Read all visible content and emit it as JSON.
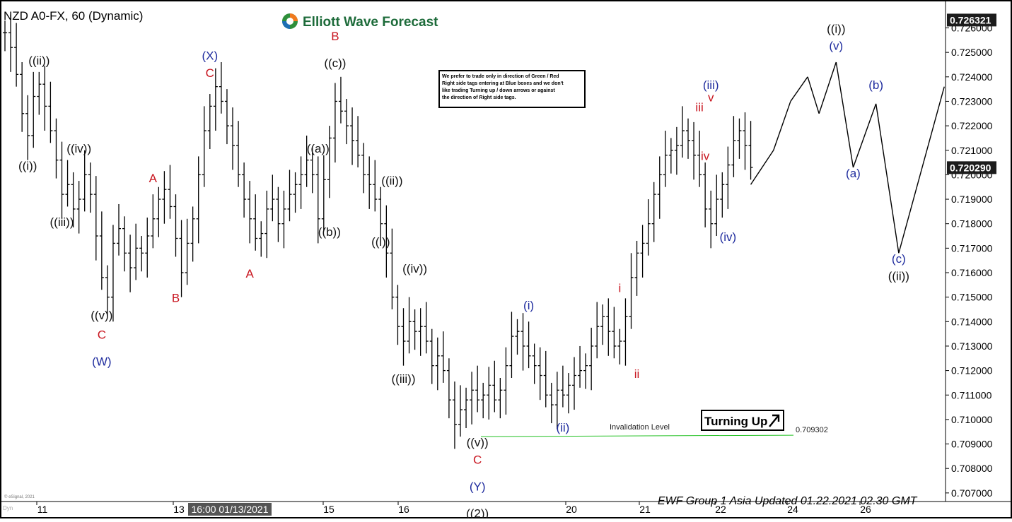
{
  "header": {
    "symbol_title": "NZD A0-FX, 60 (Dynamic)",
    "brand": "Elliott Wave Forecast",
    "footer": "EWF Group 1 Asia Updated 01.22.2021 02.30 GMT",
    "copyright": "© eSignal, 2021",
    "corner": "Dyn"
  },
  "note_box": {
    "lines": [
      "We prefer to trade only in direction of Green / Red",
      "Right side tags entering at Blue boxes and we don't",
      "like trading Turning up / down arrows or against",
      "the direction of Right side tags."
    ]
  },
  "turning_box": {
    "label": "Turning Up"
  },
  "invalidation": {
    "label": "Invalidation Level",
    "value": "0.709302",
    "price": 0.709302
  },
  "price_badges": [
    {
      "text": "0.726321",
      "price": 0.726321
    },
    {
      "text": "0.720290",
      "price": 0.72029
    }
  ],
  "colors": {
    "black": "#111111",
    "blue": "#1f2c9e",
    "red": "#c8141e",
    "green": "#21c021",
    "badge": "#1c1c1c",
    "grey": "#555555"
  },
  "chart_data": {
    "type": "line",
    "yaxis": {
      "ylim": [
        0.7063,
        0.7275
      ],
      "ticks": [
        "0.726000",
        "0.725000",
        "0.724000",
        "0.723000",
        "0.722000",
        "0.721000",
        "0.720000",
        "0.719000",
        "0.718000",
        "0.717000",
        "0.716000",
        "0.715000",
        "0.714000",
        "0.713000",
        "0.712000",
        "0.711000",
        "0.710000",
        "0.709000",
        "0.708000",
        "0.707000"
      ]
    },
    "xaxis": {
      "ticks": [
        "11",
        "13",
        "15",
        "16",
        "20",
        "21",
        "22",
        "24",
        "26"
      ],
      "cursor_label": "16:00 01/13/2021"
    },
    "price_series": [
      [
        0,
        0.7258
      ],
      [
        1,
        0.7252
      ],
      [
        2,
        0.7241
      ],
      [
        3,
        0.7225
      ],
      [
        4,
        0.7216
      ],
      [
        5,
        0.7232
      ],
      [
        6,
        0.7237
      ],
      [
        7,
        0.7228
      ],
      [
        8,
        0.7218
      ],
      [
        9,
        0.7206
      ],
      [
        10,
        0.7192
      ],
      [
        11,
        0.7196
      ],
      [
        12,
        0.7186
      ],
      [
        13,
        0.719
      ],
      [
        14,
        0.72
      ],
      [
        15,
        0.7192
      ],
      [
        16,
        0.7175
      ],
      [
        17,
        0.7158
      ],
      [
        18,
        0.715
      ],
      [
        19,
        0.7172
      ],
      [
        20,
        0.7178
      ],
      [
        21,
        0.7168
      ],
      [
        22,
        0.7162
      ],
      [
        23,
        0.717
      ],
      [
        24,
        0.7168
      ],
      [
        25,
        0.7175
      ],
      [
        26,
        0.7182
      ],
      [
        27,
        0.719
      ],
      [
        28,
        0.7194
      ],
      [
        29,
        0.7187
      ],
      [
        30,
        0.7174
      ],
      [
        31,
        0.716
      ],
      [
        32,
        0.7172
      ],
      [
        33,
        0.7182
      ],
      [
        34,
        0.72
      ],
      [
        35,
        0.7218
      ],
      [
        36,
        0.7228
      ],
      [
        37,
        0.7236
      ],
      [
        38,
        0.723
      ],
      [
        39,
        0.722
      ],
      [
        40,
        0.7212
      ],
      [
        41,
        0.72
      ],
      [
        42,
        0.719
      ],
      [
        43,
        0.7182
      ],
      [
        44,
        0.7174
      ],
      [
        45,
        0.7176
      ],
      [
        46,
        0.7186
      ],
      [
        47,
        0.719
      ],
      [
        48,
        0.718
      ],
      [
        49,
        0.7186
      ],
      [
        50,
        0.7192
      ],
      [
        51,
        0.7196
      ],
      [
        52,
        0.72
      ],
      [
        53,
        0.7206
      ],
      [
        54,
        0.72
      ],
      [
        55,
        0.7182
      ],
      [
        56,
        0.7198
      ],
      [
        57,
        0.7215
      ],
      [
        58,
        0.723
      ],
      [
        59,
        0.7226
      ],
      [
        60,
        0.722
      ],
      [
        61,
        0.7214
      ],
      [
        62,
        0.7208
      ],
      [
        63,
        0.72
      ],
      [
        64,
        0.7196
      ],
      [
        65,
        0.719
      ],
      [
        66,
        0.718
      ],
      [
        67,
        0.7168
      ],
      [
        68,
        0.715
      ],
      [
        69,
        0.7138
      ],
      [
        70,
        0.7132
      ],
      [
        71,
        0.714
      ],
      [
        72,
        0.7136
      ],
      [
        73,
        0.7138
      ],
      [
        74,
        0.7132
      ],
      [
        75,
        0.7122
      ],
      [
        76,
        0.7126
      ],
      [
        77,
        0.712
      ],
      [
        78,
        0.7108
      ],
      [
        79,
        0.7098
      ],
      [
        80,
        0.7104
      ],
      [
        81,
        0.7108
      ],
      [
        82,
        0.7112
      ],
      [
        83,
        0.7108
      ],
      [
        84,
        0.711
      ],
      [
        85,
        0.7114
      ],
      [
        86,
        0.7108
      ],
      [
        87,
        0.7112
      ],
      [
        88,
        0.7122
      ],
      [
        89,
        0.7134
      ],
      [
        90,
        0.7136
      ],
      [
        91,
        0.713
      ],
      [
        92,
        0.7126
      ],
      [
        93,
        0.7122
      ],
      [
        94,
        0.7118
      ],
      [
        95,
        0.711
      ],
      [
        96,
        0.7106
      ],
      [
        97,
        0.7112
      ],
      [
        98,
        0.711
      ],
      [
        99,
        0.7114
      ],
      [
        100,
        0.7118
      ],
      [
        101,
        0.712
      ],
      [
        102,
        0.7122
      ],
      [
        103,
        0.713
      ],
      [
        104,
        0.7138
      ],
      [
        105,
        0.7142
      ],
      [
        106,
        0.7136
      ],
      [
        107,
        0.713
      ],
      [
        108,
        0.7132
      ],
      [
        109,
        0.7142
      ],
      [
        110,
        0.7158
      ],
      [
        111,
        0.7168
      ],
      [
        112,
        0.7172
      ],
      [
        113,
        0.718
      ],
      [
        114,
        0.7192
      ],
      [
        115,
        0.72
      ],
      [
        116,
        0.7208
      ],
      [
        117,
        0.721
      ],
      [
        118,
        0.7212
      ],
      [
        119,
        0.7218
      ],
      [
        120,
        0.7214
      ],
      [
        121,
        0.7208
      ],
      [
        122,
        0.72
      ],
      [
        123,
        0.7186
      ],
      [
        124,
        0.718
      ],
      [
        125,
        0.719
      ],
      [
        126,
        0.7196
      ],
      [
        127,
        0.7204
      ],
      [
        128,
        0.7214
      ],
      [
        129,
        0.7218
      ],
      [
        130,
        0.7212
      ],
      [
        131,
        0.7203
      ]
    ],
    "projection": [
      [
        131,
        0.7196
      ],
      [
        135,
        0.721
      ],
      [
        138,
        0.723
      ],
      [
        141,
        0.724
      ],
      [
        143,
        0.7225
      ],
      [
        146,
        0.7246
      ],
      [
        149,
        0.7203
      ],
      [
        153,
        0.7229
      ],
      [
        157,
        0.7168
      ],
      [
        165,
        0.7236
      ]
    ],
    "labels": [
      {
        "text": "((ii))",
        "x": 6,
        "price": 0.7245,
        "color": "black"
      },
      {
        "text": "((i))",
        "x": 4,
        "price": 0.7202,
        "color": "black"
      },
      {
        "text": "((iv))",
        "x": 13,
        "price": 0.7209,
        "color": "black"
      },
      {
        "text": "((iii))",
        "x": 10,
        "price": 0.7179,
        "color": "black"
      },
      {
        "text": "((v))",
        "x": 17,
        "price": 0.7141,
        "color": "black"
      },
      {
        "text": "C",
        "x": 17,
        "price": 0.7133,
        "color": "red"
      },
      {
        "text": "(W)",
        "x": 17,
        "price": 0.7122,
        "color": "blue"
      },
      {
        "text": "A",
        "x": 26,
        "price": 0.7197,
        "color": "red"
      },
      {
        "text": "B",
        "x": 30,
        "price": 0.7148,
        "color": "red"
      },
      {
        "text": "(X)",
        "x": 36,
        "price": 0.7247,
        "color": "blue"
      },
      {
        "text": "C",
        "x": 36,
        "price": 0.724,
        "color": "red"
      },
      {
        "text": "A",
        "x": 43,
        "price": 0.7158,
        "color": "red"
      },
      {
        "text": "((a))",
        "x": 55,
        "price": 0.7209,
        "color": "black"
      },
      {
        "text": "((b))",
        "x": 57,
        "price": 0.7175,
        "color": "black"
      },
      {
        "text": "B",
        "x": 58,
        "price": 0.7255,
        "color": "red"
      },
      {
        "text": "((c))",
        "x": 58,
        "price": 0.7244,
        "color": "black"
      },
      {
        "text": "((ii))",
        "x": 68,
        "price": 0.7196,
        "color": "black"
      },
      {
        "text": "((i))",
        "x": 66,
        "price": 0.7171,
        "color": "black"
      },
      {
        "text": "((iv))",
        "x": 72,
        "price": 0.716,
        "color": "black"
      },
      {
        "text": "((iii))",
        "x": 70,
        "price": 0.7115,
        "color": "black"
      },
      {
        "text": "((v))",
        "x": 83,
        "price": 0.7089,
        "color": "black"
      },
      {
        "text": "C",
        "x": 83,
        "price": 0.7082,
        "color": "red"
      },
      {
        "text": "(Y)",
        "x": 83,
        "price": 0.7071,
        "color": "blue"
      },
      {
        "text": "((2))",
        "x": 83,
        "price": 0.706,
        "color": "black"
      },
      {
        "text": "(i)",
        "x": 92,
        "price": 0.7145,
        "color": "blue"
      },
      {
        "text": "(ii)",
        "x": 98,
        "price": 0.7095,
        "color": "blue"
      },
      {
        "text": "i",
        "x": 108,
        "price": 0.7152,
        "color": "red"
      },
      {
        "text": "ii",
        "x": 111,
        "price": 0.7117,
        "color": "red"
      },
      {
        "text": "(iii)",
        "x": 124,
        "price": 0.7235,
        "color": "blue"
      },
      {
        "text": "v",
        "x": 124,
        "price": 0.723,
        "color": "red"
      },
      {
        "text": "iii",
        "x": 122,
        "price": 0.7226,
        "color": "red"
      },
      {
        "text": "iv",
        "x": 123,
        "price": 0.7206,
        "color": "red"
      },
      {
        "text": "(iv)",
        "x": 127,
        "price": 0.7173,
        "color": "blue"
      },
      {
        "text": "((i))",
        "x": 146,
        "price": 0.7258,
        "color": "black"
      },
      {
        "text": "(v)",
        "x": 146,
        "price": 0.7251,
        "color": "blue"
      },
      {
        "text": "(a)",
        "x": 149,
        "price": 0.7199,
        "color": "blue"
      },
      {
        "text": "(b)",
        "x": 153,
        "price": 0.7235,
        "color": "blue"
      },
      {
        "text": "(c)",
        "x": 157,
        "price": 0.7164,
        "color": "blue"
      },
      {
        "text": "((ii))",
        "x": 157,
        "price": 0.7157,
        "color": "black"
      }
    ]
  }
}
